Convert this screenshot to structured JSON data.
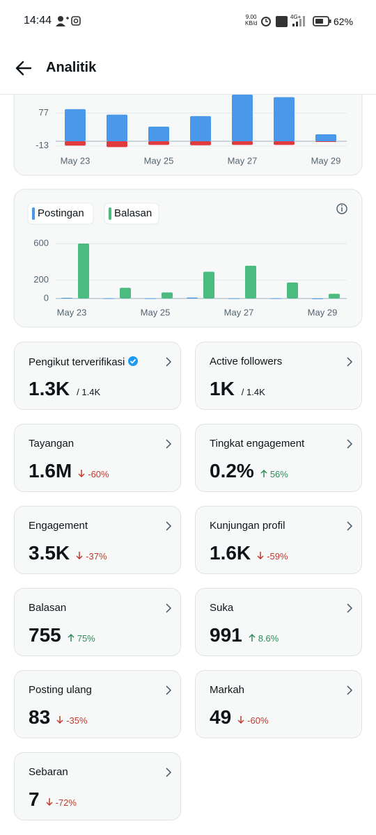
{
  "status_bar": {
    "time": "14:44",
    "speed": "9.00",
    "speed_unit": "KB/d",
    "network": "4G+",
    "battery": "62%"
  },
  "header": {
    "title": "Analitik"
  },
  "chart_data": [
    {
      "type": "bar",
      "categories": [
        "May 23",
        null,
        "May 25",
        null,
        "May 27",
        null,
        "May 29"
      ],
      "series": [
        {
          "color": "#4a98e9",
          "values": [
            88,
            73,
            40,
            69,
            128,
            121,
            19
          ]
        },
        {
          "color": "#e0393e",
          "values": [
            -12,
            -16,
            -10,
            -11,
            -10,
            -10,
            0
          ]
        }
      ],
      "ylim": [
        -23,
        128
      ],
      "yticks": [
        -13,
        77
      ],
      "grid": true
    },
    {
      "type": "bar",
      "categories": [
        "May 23",
        null,
        "May 25",
        null,
        "May 27",
        null,
        "May 29"
      ],
      "series": [
        {
          "name": "Postingan",
          "color": "#4a98e9",
          "values": [
            8,
            3,
            3,
            10,
            3,
            3,
            1
          ]
        },
        {
          "name": "Balasan",
          "color": "#4cbb7f",
          "values": [
            600,
            117,
            66,
            292,
            358,
            175,
            51
          ]
        }
      ],
      "ylim": [
        0,
        600
      ],
      "yticks": [
        0,
        200,
        600
      ],
      "grid": true,
      "legend": "top-left"
    }
  ],
  "stats": [
    {
      "label": "Pengikut terverifikasi",
      "value": "1.3K",
      "total": "/ 1.4K",
      "verified": true
    },
    {
      "label": "Active followers",
      "value": "1K",
      "total": "/ 1.4K"
    },
    {
      "label": "Tayangan",
      "value": "1.6M",
      "change": "-60%",
      "direction": "down"
    },
    {
      "label": "Tingkat engagement",
      "value": "0.2%",
      "change": "56%",
      "direction": "up"
    },
    {
      "label": "Engagement",
      "value": "3.5K",
      "change": "-37%",
      "direction": "down"
    },
    {
      "label": "Kunjungan profil",
      "value": "1.6K",
      "change": "-59%",
      "direction": "down"
    },
    {
      "label": "Balasan",
      "value": "755",
      "change": "75%",
      "direction": "up"
    },
    {
      "label": "Suka",
      "value": "991",
      "change": "8.6%",
      "direction": "up"
    },
    {
      "label": "Posting ulang",
      "value": "83",
      "change": "-35%",
      "direction": "down"
    },
    {
      "label": "Markah",
      "value": "49",
      "change": "-60%",
      "direction": "down"
    },
    {
      "label": "Sebaran",
      "value": "7",
      "change": "-72%",
      "direction": "down"
    }
  ]
}
